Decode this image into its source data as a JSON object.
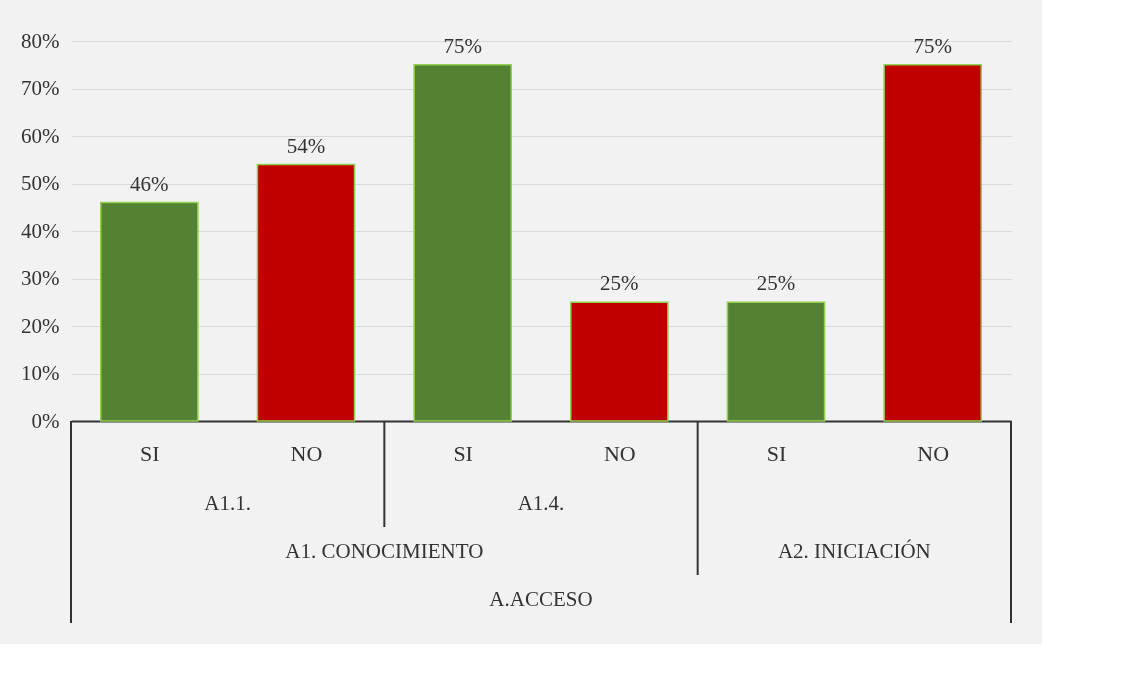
{
  "chart_data": {
    "type": "bar",
    "categories": [
      "SI",
      "NO",
      "SI",
      "NO",
      "SI",
      "NO"
    ],
    "values": [
      46,
      54,
      75,
      25,
      25,
      75
    ],
    "colors": [
      "#548235",
      "#c00000",
      "#548235",
      "#c00000",
      "#548235",
      "#c00000"
    ],
    "ylim": [
      0,
      80
    ],
    "yticks": [
      {
        "value": 0,
        "label": "0%"
      },
      {
        "value": 10,
        "label": "10%"
      },
      {
        "value": 20,
        "label": "20%"
      },
      {
        "value": 30,
        "label": "30%"
      },
      {
        "value": 40,
        "label": "40%"
      },
      {
        "value": 50,
        "label": "50%"
      },
      {
        "value": 60,
        "label": "60%"
      },
      {
        "value": 70,
        "label": "70%"
      },
      {
        "value": 80,
        "label": "80%"
      }
    ],
    "value_labels": [
      "46%",
      "54%",
      "75%",
      "25%",
      "25%",
      "75%"
    ],
    "annotations": [
      "A1.1.",
      "A1.4.",
      "A1. CONOCIMIENTO",
      "A2. INICIACIÓN",
      "A.ACCESO"
    ],
    "grid": "y"
  }
}
